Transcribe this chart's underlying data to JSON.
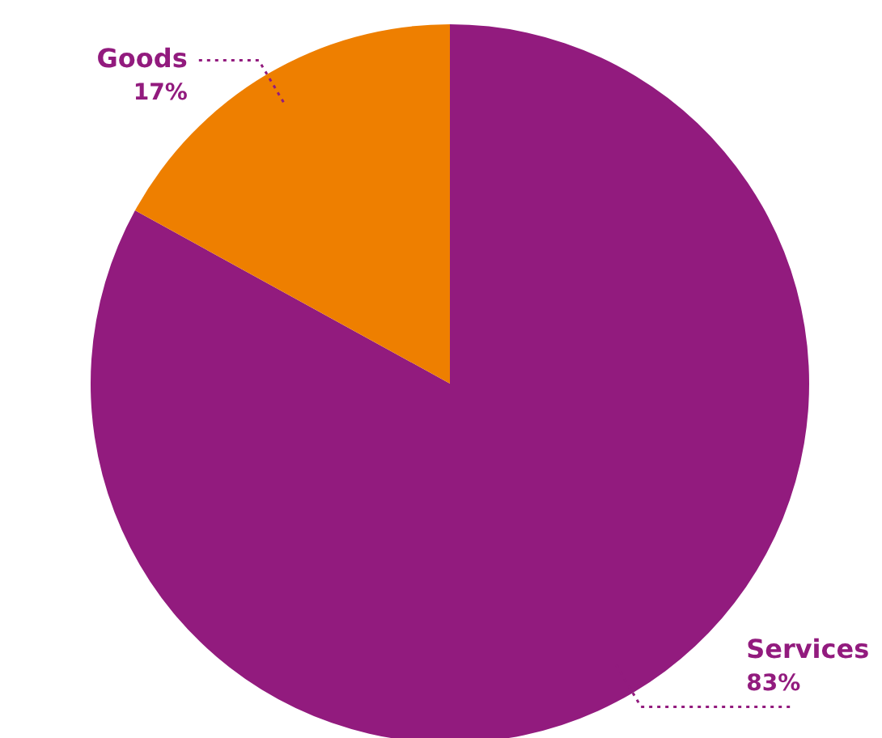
{
  "chart_data": {
    "type": "pie",
    "categories": [
      "Services",
      "Goods"
    ],
    "values": [
      83,
      17
    ],
    "colors": [
      "#921b7e",
      "#ee7f00"
    ],
    "value_labels": [
      "83%",
      "17%"
    ]
  }
}
